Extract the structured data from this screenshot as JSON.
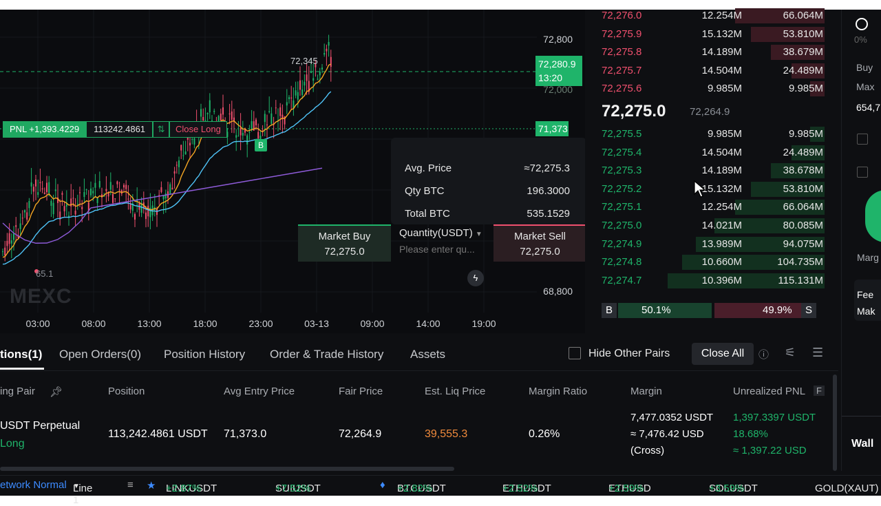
{
  "chart": {
    "y_ticks": [
      "72,800",
      "68,800"
    ],
    "x_ticks": [
      "03:00",
      "08:00",
      "13:00",
      "18:00",
      "23:00",
      "03-13",
      "09:00",
      "14:00",
      "19:00"
    ],
    "high_label": "72,345",
    "low_label": "65.1",
    "last_price": "72,280.9",
    "countdown": "13:20",
    "entry_tag": "71,373",
    "partial_tag": "72,000",
    "watermark": "MEXC",
    "buy_marker": "B",
    "pnl": {
      "label": "PNL +1,393.4229",
      "qty": "113242.4861",
      "close_label": "Close Long"
    },
    "tooltip": {
      "avg_label": "Avg. Price",
      "avg_value": "≈72,275.3",
      "qty_label": "Qty BTC",
      "qty_value": "196.3000",
      "total_label": "Total BTC",
      "total_value": "535.1529"
    },
    "quick": {
      "buy_label": "Market Buy",
      "buy_price": "72,275.0",
      "sell_label": "Market Sell",
      "sell_price": "72,275.0",
      "qty_label": "Quantity(USDT)",
      "qty_placeholder": "Please enter qu..."
    }
  },
  "orderbook": {
    "asks": [
      {
        "price": "72,276.0",
        "amount": "12.254M",
        "total": "66.064M",
        "depth": 0.57
      },
      {
        "price": "72,275.9",
        "amount": "15.132M",
        "total": "53.810M",
        "depth": 0.47
      },
      {
        "price": "72,275.8",
        "amount": "14.189M",
        "total": "38.679M",
        "depth": 0.34
      },
      {
        "price": "72,275.7",
        "amount": "14.504M",
        "total": "24.489M",
        "depth": 0.21
      },
      {
        "price": "72,275.6",
        "amount": "9.985M",
        "total": "9.985M",
        "depth": 0.09
      }
    ],
    "mid_price": "72,275.0",
    "mark_price": "72,264.9",
    "bids": [
      {
        "price": "72,275.5",
        "amount": "9.985M",
        "total": "9.985M",
        "depth": 0.09
      },
      {
        "price": "72,275.4",
        "amount": "14.504M",
        "total": "24.489M",
        "depth": 0.21
      },
      {
        "price": "72,275.3",
        "amount": "14.189M",
        "total": "38.678M",
        "depth": 0.34
      },
      {
        "price": "72,275.2",
        "amount": "15.132M",
        "total": "53.810M",
        "depth": 0.47
      },
      {
        "price": "72,275.1",
        "amount": "12.254M",
        "total": "66.064M",
        "depth": 0.57
      },
      {
        "price": "72,275.0",
        "amount": "14.021M",
        "total": "80.085M",
        "depth": 0.7
      },
      {
        "price": "72,274.9",
        "amount": "13.989M",
        "total": "94.075M",
        "depth": 0.82
      },
      {
        "price": "72,274.8",
        "amount": "10.660M",
        "total": "104.735M",
        "depth": 0.91
      },
      {
        "price": "72,274.7",
        "amount": "10.396M",
        "total": "115.131M",
        "depth": 1.0
      }
    ],
    "buy_ratio": "50.1%",
    "sell_ratio": "49.9%",
    "b_label": "B",
    "s_label": "S"
  },
  "right_panel": {
    "pct": "0%",
    "buy_label": "Buy",
    "max_label": "Max",
    "max_value": "654,7",
    "marg": "Marg",
    "fee": "Fee",
    "mak": "Mak",
    "wall": "Wall"
  },
  "tabs": [
    "tions(1)",
    "Open Orders(0)",
    "Position History",
    "Order & Trade History",
    "Assets"
  ],
  "toolbar": {
    "hide_label": "Hide Other Pairs",
    "close_all": "Close All"
  },
  "table": {
    "headers": [
      "ing Pair",
      "Position",
      "Avg Entry Price",
      "Fair Price",
      "Est. Liq Price",
      "Margin Ratio",
      "Margin",
      "Unrealized PNL"
    ],
    "row": {
      "pair": "USDT  Perpetual",
      "side": "Long",
      "position": "113,242.4861 USDT",
      "avg_entry": "71,373.0",
      "fair": "72,264.9",
      "liq": "39,555.3",
      "ratio": "0.26%",
      "margin1": "7,477.0352 USDT",
      "margin2": "≈ 7,476.42 USD",
      "margin3": "(Cross)",
      "pnl1": "1,397.3397 USDT",
      "pnl2": "18.68%",
      "pnl3": "≈ 1,397.22 USD"
    }
  },
  "ticker": {
    "network": "etwork Normal",
    "line": "Line 1",
    "items": [
      {
        "sym": "LINKUSDT",
        "chg": "+2.87%"
      },
      {
        "sym": "SUIUSDT",
        "chg": "+7.52%"
      },
      {
        "sym": "BTCUSDT",
        "chg": "+2.82%"
      },
      {
        "sym": "ETHUSDT",
        "chg": "+2.52%"
      },
      {
        "sym": "ETHUSD",
        "chg": "+2.59%"
      },
      {
        "sym": "SOLUSDT",
        "chg": "+3.59%"
      },
      {
        "sym": "GOLD(XAUT)",
        "chg": ""
      }
    ]
  },
  "colors": {
    "up": "#1fb46a",
    "down": "#f0506e",
    "liq": "#f08a3c"
  }
}
